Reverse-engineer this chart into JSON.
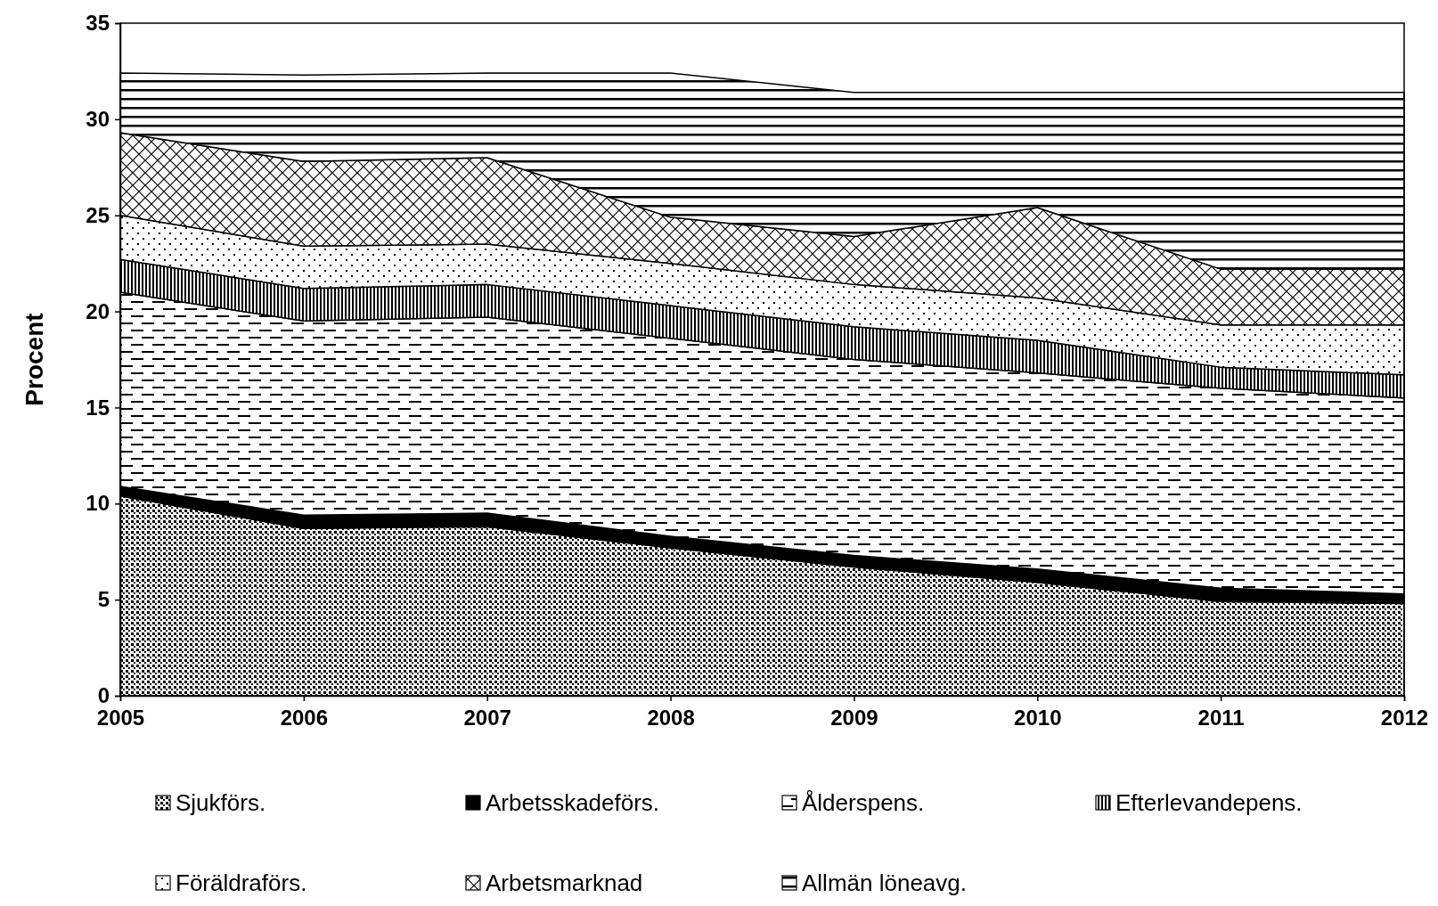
{
  "chart_data": {
    "type": "area",
    "stacked": true,
    "ylabel": "Procent",
    "x": [
      2005,
      2006,
      2007,
      2008,
      2009,
      2010,
      2011,
      2012
    ],
    "xlim": [
      2005,
      2012
    ],
    "xticks": [
      2005,
      2006,
      2007,
      2008,
      2009,
      2010,
      2011,
      2012
    ],
    "ylim": [
      0,
      35
    ],
    "yticks": [
      0,
      5,
      10,
      15,
      20,
      25,
      30,
      35
    ],
    "legend": "bottom",
    "series": [
      {
        "name": "Sjukförs.",
        "color": "#000000",
        "values": [
          10.4,
          8.7,
          8.8,
          7.7,
          6.7,
          5.9,
          4.9,
          4.8
        ]
      },
      {
        "name": "Arbetsskadeförs.",
        "color": "#000000",
        "values": [
          0.5,
          0.7,
          0.7,
          0.6,
          0.6,
          0.7,
          0.7,
          0.5
        ]
      },
      {
        "name": "Ålderspens.",
        "color": "#000000",
        "values": [
          10.1,
          10.1,
          10.2,
          10.3,
          10.2,
          10.2,
          10.4,
          10.2
        ]
      },
      {
        "name": "Efterlevandepens.",
        "color": "#000000",
        "values": [
          1.7,
          1.7,
          1.7,
          1.7,
          1.7,
          1.7,
          1.1,
          1.2
        ]
      },
      {
        "name": "Föräldraförs.",
        "color": "#000000",
        "values": [
          2.3,
          2.2,
          2.1,
          2.2,
          2.2,
          2.2,
          2.2,
          2.6
        ]
      },
      {
        "name": "Arbetsmarknad",
        "color": "#000000",
        "values": [
          4.3,
          4.4,
          4.5,
          2.4,
          2.5,
          4.7,
          2.9,
          2.9
        ]
      },
      {
        "name": "Allmän löneavg.",
        "color": "#000000",
        "values": [
          3.1,
          4.5,
          4.4,
          7.5,
          7.5,
          6.0,
          9.2,
          9.2
        ]
      }
    ]
  }
}
